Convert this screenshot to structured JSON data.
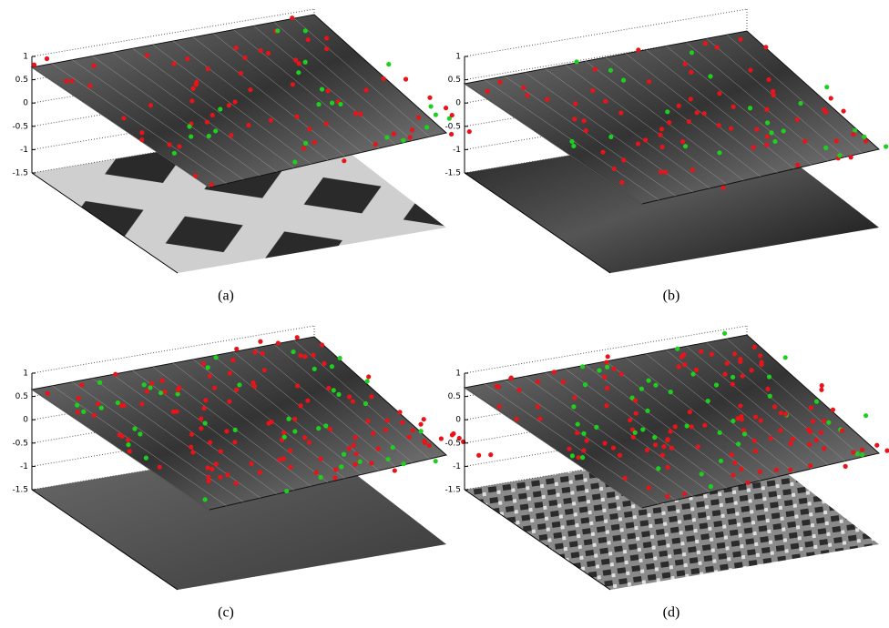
{
  "figure": {
    "zlim": [
      -1.5,
      1
    ],
    "panels": [
      {
        "label": "(a)",
        "zticks": [
          -1.5,
          -1,
          -0.5,
          0,
          0.5,
          1
        ]
      },
      {
        "label": "(b)",
        "zticks": [
          -1.5,
          -1,
          -0.5,
          0,
          0.5,
          1
        ]
      },
      {
        "label": "(c)",
        "zticks": [
          -1.5,
          -1,
          -0.5,
          0,
          0.5,
          1
        ]
      },
      {
        "label": "(d)",
        "zticks": [
          -1.5,
          -1,
          -0.5,
          0,
          0.5,
          1
        ]
      }
    ]
  }
}
